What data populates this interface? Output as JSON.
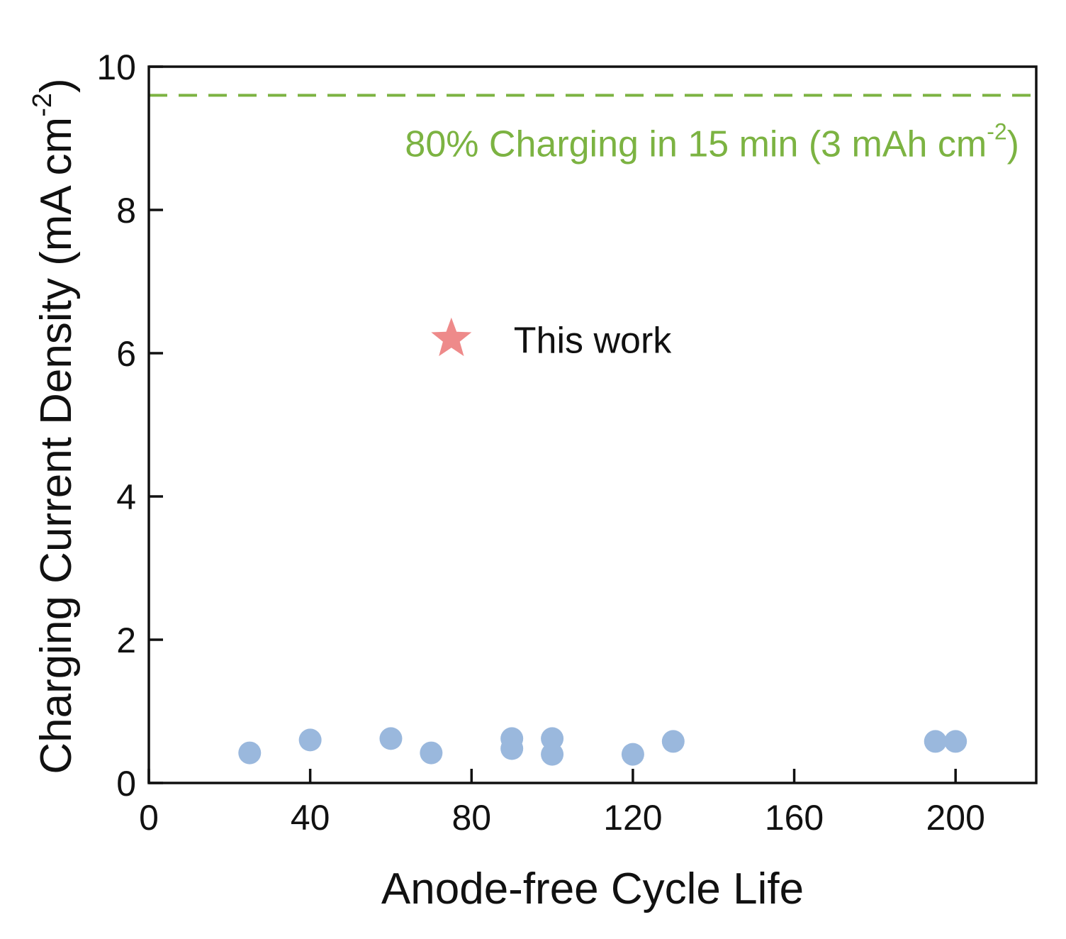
{
  "chart_data": {
    "type": "scatter",
    "xlabel": "Anode-free Cycle Life",
    "ylabel_main": "Charging Current Density (mA cm",
    "ylabel_sup": "-2",
    "ylabel_end": ")",
    "xlim": [
      0,
      220
    ],
    "ylim": [
      0,
      10
    ],
    "xticks": [
      "0",
      "40",
      "80",
      "120",
      "160",
      "200"
    ],
    "xtick_values": [
      0,
      40,
      80,
      120,
      160,
      200
    ],
    "yticks": [
      "0",
      "2",
      "4",
      "6",
      "8",
      "10"
    ],
    "ytick_values": [
      0,
      2,
      4,
      6,
      8,
      10
    ],
    "grid": false,
    "series": [
      {
        "marker": "circle",
        "color": "#9ab8dd",
        "points": [
          {
            "x": 25,
            "y": 0.42
          },
          {
            "x": 40,
            "y": 0.6
          },
          {
            "x": 60,
            "y": 0.62
          },
          {
            "x": 70,
            "y": 0.42
          },
          {
            "x": 90,
            "y": 0.62
          },
          {
            "x": 90,
            "y": 0.48
          },
          {
            "x": 100,
            "y": 0.62
          },
          {
            "x": 100,
            "y": 0.4
          },
          {
            "x": 120,
            "y": 0.4
          },
          {
            "x": 130,
            "y": 0.58
          },
          {
            "x": 195,
            "y": 0.58
          },
          {
            "x": 200,
            "y": 0.58
          }
        ]
      },
      {
        "marker": "star",
        "color": "#ee8a8a",
        "points": [
          {
            "x": 75,
            "y": 6.2
          }
        ]
      }
    ],
    "reference_line": {
      "y": 9.6,
      "color": "#7cb342",
      "style": "dashed",
      "label_main": "80% Charging in 15 min (3 mAh cm",
      "label_sup": "-2",
      "label_end": ")"
    },
    "annotation": {
      "text": "This work",
      "x": 88,
      "y": 6.2
    }
  }
}
